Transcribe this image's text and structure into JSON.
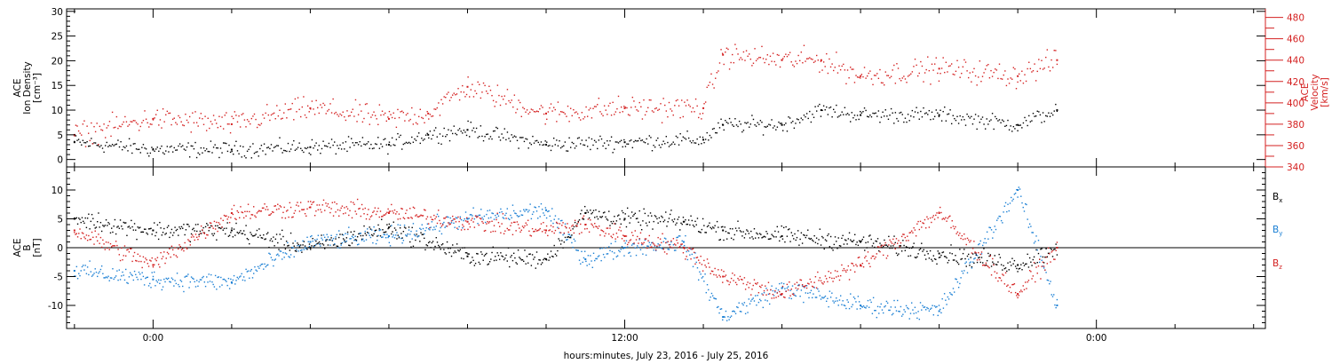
{
  "colors": {
    "black": "#000000",
    "red": "#d42020",
    "blue": "#1a7fd4"
  },
  "xaxis": {
    "label": "hours:minutes, July 23, 2016 - July 25, 2016",
    "range_hours": [
      -2.2,
      28.3
    ],
    "tick_labels": [
      {
        "hour": 0,
        "text": "0:00"
      },
      {
        "hour": 12,
        "text": "12:00"
      },
      {
        "hour": 24,
        "text": "0:00"
      }
    ],
    "minor_tick_every_hours": 2
  },
  "chart_data": [
    {
      "type": "scatter",
      "panel": "plasma",
      "left_ylabel": [
        "ACE",
        "Ion Density",
        "[cm⁻³]"
      ],
      "right_ylabel": [
        "ACE",
        "Velocity",
        "[km/s]"
      ],
      "ylim_left": [
        -1.5,
        30.5
      ],
      "ylim_right": [
        340,
        488
      ],
      "yticks_left": [
        0,
        5,
        10,
        15,
        20,
        25,
        30
      ],
      "yticks_right": [
        340,
        360,
        380,
        400,
        420,
        440,
        460,
        480
      ],
      "series": [
        {
          "name": "Ion Density",
          "axis": "left",
          "color": "#000000",
          "x_hours": [
            -2.0,
            0.0,
            2.0,
            4.0,
            6.0,
            7.0,
            8.0,
            10.0,
            12.0,
            14.0,
            14.5,
            16.0,
            17.0,
            18.0,
            20.0,
            22.0,
            23.0
          ],
          "values": [
            3.5,
            2.0,
            2.0,
            2.5,
            3.0,
            5.0,
            6.0,
            3.0,
            3.5,
            4.0,
            7.0,
            7.0,
            10.0,
            9.0,
            9.0,
            7.0,
            10.0
          ]
        },
        {
          "name": "Velocity",
          "axis": "right",
          "color": "#d42020",
          "x_hours": [
            -2.0,
            0.0,
            2.0,
            4.0,
            6.0,
            7.0,
            8.0,
            10.0,
            12.0,
            14.0,
            14.5,
            16.0,
            17.0,
            18.0,
            20.0,
            22.0,
            23.0
          ],
          "values": [
            370,
            385,
            380,
            395,
            385,
            390,
            415,
            390,
            395,
            395,
            445,
            440,
            440,
            425,
            432,
            425,
            440
          ]
        }
      ]
    },
    {
      "type": "scatter",
      "panel": "magnetic field",
      "ylabel": [
        "ACE",
        "B",
        "[nT]"
      ],
      "ylim": [
        -14,
        14
      ],
      "yticks": [
        -10,
        -5,
        0,
        5,
        10
      ],
      "legend": [
        {
          "text": "B",
          "sub": "x",
          "color": "#000000"
        },
        {
          "text": "B",
          "sub": "y",
          "color": "#1a7fd4"
        },
        {
          "text": "B",
          "sub": "z",
          "color": "#d42020"
        }
      ],
      "series": [
        {
          "name": "Bx",
          "color": "#000000",
          "x_hours": [
            -2.0,
            0.0,
            2.0,
            4.0,
            6.0,
            8.0,
            10.0,
            11.0,
            12.0,
            13.5,
            14.5,
            16.0,
            18.0,
            20.0,
            22.0,
            23.0
          ],
          "values": [
            5.0,
            3.0,
            3.0,
            0.0,
            3.5,
            -1.5,
            -2.0,
            6.0,
            5.0,
            4.5,
            3.0,
            2.0,
            1.0,
            -1.0,
            -3.0,
            0.0
          ]
        },
        {
          "name": "By",
          "color": "#1a7fd4",
          "x_hours": [
            -2.0,
            0.0,
            2.0,
            4.0,
            6.0,
            8.0,
            10.0,
            11.0,
            12.0,
            13.5,
            14.5,
            16.0,
            18.0,
            20.0,
            22.0,
            23.0
          ],
          "values": [
            -4.0,
            -5.5,
            -6.0,
            1.0,
            2.0,
            5.0,
            6.5,
            -2.0,
            0.0,
            1.0,
            -12.0,
            -7.0,
            -10.0,
            -11.0,
            10.0,
            -10.0
          ]
        },
        {
          "name": "Bz",
          "color": "#d42020",
          "x_hours": [
            -2.0,
            0.0,
            2.0,
            4.0,
            6.0,
            8.0,
            10.0,
            11.0,
            12.0,
            13.5,
            14.5,
            16.0,
            18.0,
            20.0,
            22.0,
            23.0
          ],
          "values": [
            3.0,
            -3.0,
            6.0,
            7.0,
            6.0,
            4.5,
            3.0,
            4.0,
            2.0,
            0.0,
            -5.0,
            -8.0,
            -3.0,
            6.0,
            -8.0,
            0.0
          ]
        }
      ]
    }
  ]
}
